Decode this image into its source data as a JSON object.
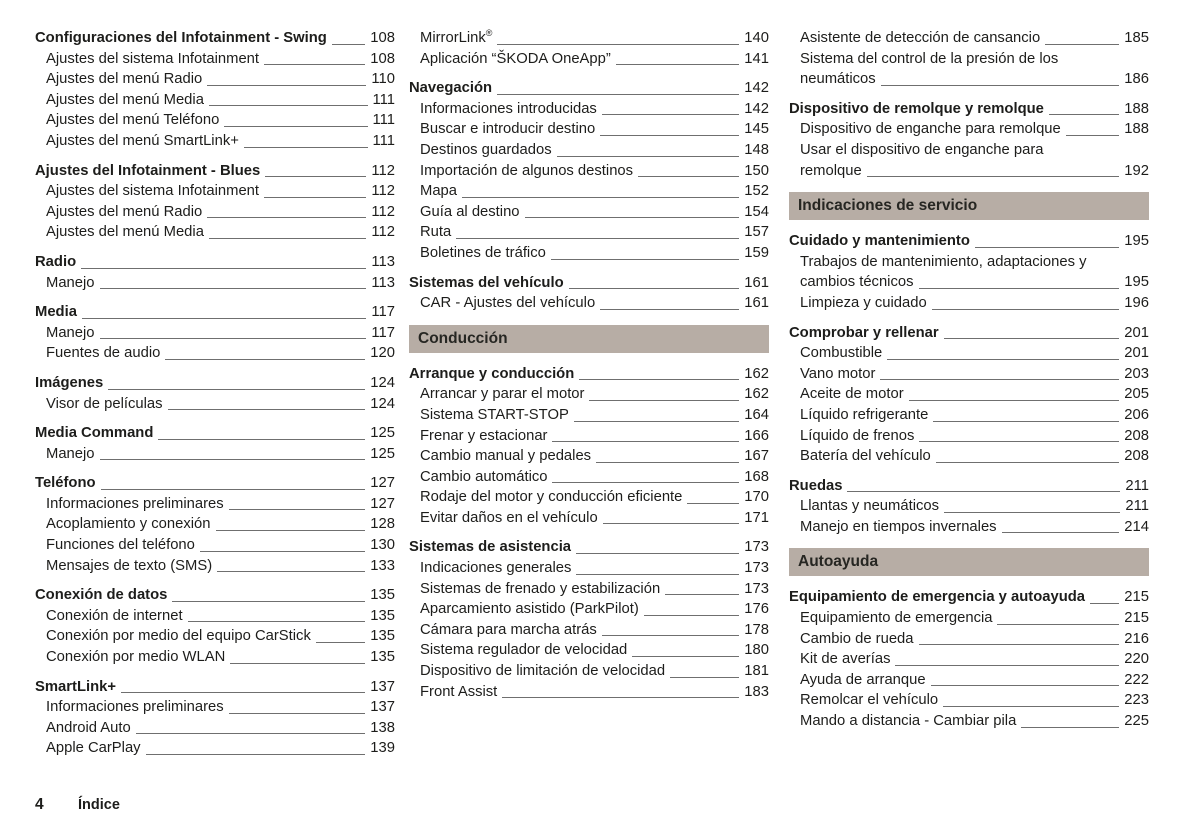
{
  "document_title": "Índice",
  "footer": {
    "page_number": "4",
    "label": "Índice"
  },
  "colors": {
    "text": "#1d1d1b",
    "leader_line": "#6f6f6f",
    "section_bar_background": "#b7ada5"
  },
  "columns": [
    {
      "name": "column-1",
      "items": [
        {
          "t": "entry",
          "bold": true,
          "label": "Configuraciones del Infotainment - Swing",
          "page": "108"
        },
        {
          "t": "entry",
          "sub": true,
          "label": "Ajustes del sistema Infotainment",
          "page": "108"
        },
        {
          "t": "entry",
          "sub": true,
          "label": "Ajustes del menú Radio",
          "page": "110"
        },
        {
          "t": "entry",
          "sub": true,
          "label": "Ajustes del menú Media",
          "page": "111"
        },
        {
          "t": "entry",
          "sub": true,
          "label": "Ajustes del menú Teléfono",
          "page": "111"
        },
        {
          "t": "entry",
          "sub": true,
          "label": "Ajustes del menú SmartLink+",
          "page": "111"
        },
        {
          "t": "entry",
          "bold": true,
          "label": "Ajustes del Infotainment - Blues",
          "page": "112"
        },
        {
          "t": "entry",
          "sub": true,
          "label": "Ajustes del sistema Infotainment",
          "page": "112"
        },
        {
          "t": "entry",
          "sub": true,
          "label": "Ajustes del menú Radio",
          "page": "112"
        },
        {
          "t": "entry",
          "sub": true,
          "label": "Ajustes del menú Media",
          "page": "112"
        },
        {
          "t": "entry",
          "bold": true,
          "label": "Radio",
          "page": "113"
        },
        {
          "t": "entry",
          "sub": true,
          "label": "Manejo",
          "page": "113"
        },
        {
          "t": "entry",
          "bold": true,
          "label": "Media",
          "page": "117"
        },
        {
          "t": "entry",
          "sub": true,
          "label": "Manejo",
          "page": "117"
        },
        {
          "t": "entry",
          "sub": true,
          "label": "Fuentes de audio",
          "page": "120"
        },
        {
          "t": "entry",
          "bold": true,
          "label": "Imágenes",
          "page": "124"
        },
        {
          "t": "entry",
          "sub": true,
          "label": "Visor de películas",
          "page": "124"
        },
        {
          "t": "entry",
          "bold": true,
          "label": "Media Command",
          "page": "125"
        },
        {
          "t": "entry",
          "sub": true,
          "label": "Manejo",
          "page": "125"
        },
        {
          "t": "entry",
          "bold": true,
          "label": "Teléfono",
          "page": "127"
        },
        {
          "t": "entry",
          "sub": true,
          "label": "Informaciones preliminares",
          "page": "127"
        },
        {
          "t": "entry",
          "sub": true,
          "label": "Acoplamiento y conexión",
          "page": "128"
        },
        {
          "t": "entry",
          "sub": true,
          "label": "Funciones del teléfono",
          "page": "130"
        },
        {
          "t": "entry",
          "sub": true,
          "label": "Mensajes de texto (SMS)",
          "page": "133"
        },
        {
          "t": "entry",
          "bold": true,
          "label": "Conexión de datos",
          "page": "135"
        },
        {
          "t": "entry",
          "sub": true,
          "label": "Conexión de internet",
          "page": "135"
        },
        {
          "t": "entry",
          "sub": true,
          "label": "Conexión por medio del equipo CarStick",
          "page": "135"
        },
        {
          "t": "entry",
          "sub": true,
          "label": "Conexión por medio WLAN",
          "page": "135"
        },
        {
          "t": "entry",
          "bold": true,
          "label": "SmartLink+",
          "page": "137"
        },
        {
          "t": "entry",
          "sub": true,
          "label": "Informaciones preliminares",
          "page": "137"
        },
        {
          "t": "entry",
          "sub": true,
          "label": "Android Auto",
          "page": "138"
        },
        {
          "t": "entry",
          "sub": true,
          "label": "Apple CarPlay",
          "page": "139"
        }
      ]
    },
    {
      "name": "column-2",
      "items": [
        {
          "t": "entry",
          "sub": true,
          "label": "MirrorLink",
          "sup": "®",
          "page": "140"
        },
        {
          "t": "entry",
          "sub": true,
          "label": "Aplicación “ŠKODA OneApp”",
          "page": "141"
        },
        {
          "t": "entry",
          "bold": true,
          "label": "Navegación",
          "page": "142"
        },
        {
          "t": "entry",
          "sub": true,
          "label": "Informaciones introducidas",
          "page": "142"
        },
        {
          "t": "entry",
          "sub": true,
          "label": "Buscar e introducir destino",
          "page": "145"
        },
        {
          "t": "entry",
          "sub": true,
          "label": "Destinos guardados",
          "page": "148"
        },
        {
          "t": "entry",
          "sub": true,
          "label": "Importación de algunos destinos",
          "page": "150"
        },
        {
          "t": "entry",
          "sub": true,
          "label": "Mapa",
          "page": "152"
        },
        {
          "t": "entry",
          "sub": true,
          "label": "Guía al destino",
          "page": "154"
        },
        {
          "t": "entry",
          "sub": true,
          "label": "Ruta",
          "page": "157"
        },
        {
          "t": "entry",
          "sub": true,
          "label": "Boletines de tráfico",
          "page": "159"
        },
        {
          "t": "entry",
          "bold": true,
          "label": "Sistemas del vehículo",
          "page": "161"
        },
        {
          "t": "entry",
          "sub": true,
          "label": "CAR - Ajustes del vehículo",
          "page": "161"
        },
        {
          "t": "section",
          "label": "Conducción"
        },
        {
          "t": "entry",
          "bold": true,
          "label": "Arranque y conducción",
          "page": "162"
        },
        {
          "t": "entry",
          "sub": true,
          "label": "Arrancar y parar el motor",
          "page": "162"
        },
        {
          "t": "entry",
          "sub": true,
          "label": "Sistema START-STOP",
          "page": "164"
        },
        {
          "t": "entry",
          "sub": true,
          "label": "Frenar y estacionar",
          "page": "166"
        },
        {
          "t": "entry",
          "sub": true,
          "label": "Cambio manual y pedales",
          "page": "167"
        },
        {
          "t": "entry",
          "sub": true,
          "label": "Cambio automático",
          "page": "168"
        },
        {
          "t": "entry",
          "sub": true,
          "label": "Rodaje del motor y conducción eficiente",
          "page": "170"
        },
        {
          "t": "entry",
          "sub": true,
          "label": "Evitar daños en el vehículo",
          "page": "171"
        },
        {
          "t": "entry",
          "bold": true,
          "label": "Sistemas de asistencia",
          "page": "173"
        },
        {
          "t": "entry",
          "sub": true,
          "label": "Indicaciones generales",
          "page": "173"
        },
        {
          "t": "entry",
          "sub": true,
          "label": "Sistemas de frenado y estabilización",
          "page": "173"
        },
        {
          "t": "entry",
          "sub": true,
          "label": "Aparcamiento asistido (ParkPilot)",
          "page": "176"
        },
        {
          "t": "entry",
          "sub": true,
          "label": "Cámara para marcha atrás",
          "page": "178"
        },
        {
          "t": "entry",
          "sub": true,
          "label": "Sistema regulador de velocidad",
          "page": "180"
        },
        {
          "t": "entry",
          "sub": true,
          "label": "Dispositivo de limitación de velocidad",
          "page": "181"
        },
        {
          "t": "entry",
          "sub": true,
          "label": "Front Assist",
          "page": "183"
        }
      ]
    },
    {
      "name": "column-3",
      "items": [
        {
          "t": "entry",
          "sub": true,
          "label": "Asistente de detección de cansancio",
          "page": "185"
        },
        {
          "t": "entry",
          "sub": true,
          "label": "Sistema del control de la presión de los",
          "label2": "neumáticos",
          "page": "186"
        },
        {
          "t": "entry",
          "bold": true,
          "label": "Dispositivo de remolque y remolque",
          "page": "188"
        },
        {
          "t": "entry",
          "sub": true,
          "label": "Dispositivo de enganche para remolque",
          "page": "188"
        },
        {
          "t": "entry",
          "sub": true,
          "label": "Usar el dispositivo de enganche para",
          "label2": "remolque",
          "page": "192"
        },
        {
          "t": "section",
          "label": "Indicaciones de servicio"
        },
        {
          "t": "entry",
          "bold": true,
          "label": "Cuidado y mantenimiento",
          "page": "195"
        },
        {
          "t": "entry",
          "sub": true,
          "label": "Trabajos de mantenimiento, adaptaciones y",
          "label2": "cambios técnicos",
          "page": "195"
        },
        {
          "t": "entry",
          "sub": true,
          "label": "Limpieza y cuidado",
          "page": "196"
        },
        {
          "t": "entry",
          "bold": true,
          "label": "Comprobar y rellenar",
          "page": "201"
        },
        {
          "t": "entry",
          "sub": true,
          "label": "Combustible",
          "page": "201"
        },
        {
          "t": "entry",
          "sub": true,
          "label": "Vano motor",
          "page": "203"
        },
        {
          "t": "entry",
          "sub": true,
          "label": "Aceite de motor",
          "page": "205"
        },
        {
          "t": "entry",
          "sub": true,
          "label": "Líquido refrigerante",
          "page": "206"
        },
        {
          "t": "entry",
          "sub": true,
          "label": "Líquido de frenos",
          "page": "208"
        },
        {
          "t": "entry",
          "sub": true,
          "label": "Batería del vehículo",
          "page": "208"
        },
        {
          "t": "entry",
          "bold": true,
          "label": "Ruedas",
          "page": "211"
        },
        {
          "t": "entry",
          "sub": true,
          "label": "Llantas y neumáticos",
          "page": "211"
        },
        {
          "t": "entry",
          "sub": true,
          "label": "Manejo en tiempos invernales",
          "page": "214"
        },
        {
          "t": "section",
          "label": "Autoayuda"
        },
        {
          "t": "entry",
          "bold": true,
          "label": "Equipamiento de emergencia y autoayuda",
          "page": "215"
        },
        {
          "t": "entry",
          "sub": true,
          "label": "Equipamiento de emergencia",
          "page": "215"
        },
        {
          "t": "entry",
          "sub": true,
          "label": "Cambio de rueda",
          "page": "216"
        },
        {
          "t": "entry",
          "sub": true,
          "label": "Kit de averías",
          "page": "220"
        },
        {
          "t": "entry",
          "sub": true,
          "label": "Ayuda de arranque",
          "page": "222"
        },
        {
          "t": "entry",
          "sub": true,
          "label": "Remolcar el vehículo",
          "page": "223"
        },
        {
          "t": "entry",
          "sub": true,
          "label": "Mando a distancia - Cambiar pila",
          "page": "225"
        }
      ]
    }
  ]
}
